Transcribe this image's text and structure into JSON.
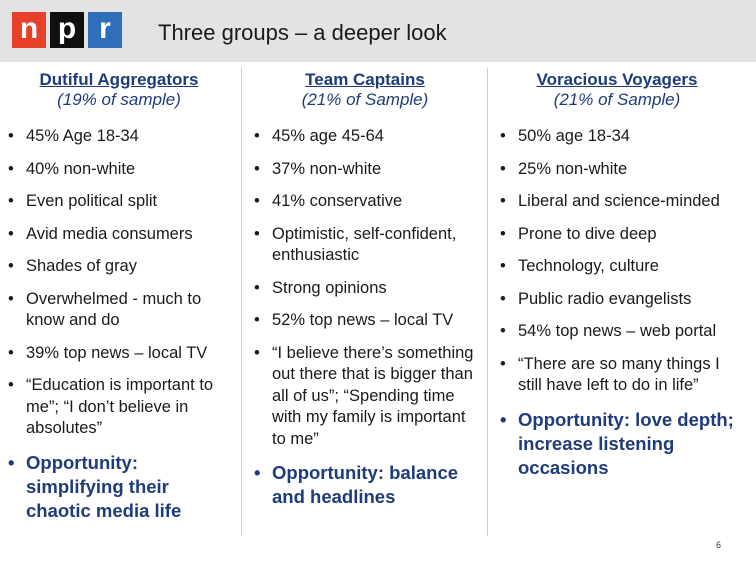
{
  "header": {
    "logo": [
      "n",
      "p",
      "r"
    ],
    "title": "Three groups – a deeper look"
  },
  "columns": [
    {
      "name": "Dutiful Aggregators",
      "sub": "(19% of sample)",
      "bullets": [
        "45% Age 18-34",
        "40% non-white",
        "Even political split",
        "Avid media consumers",
        "Shades of gray",
        "Overwhelmed - much to know and do",
        "39% top news – local TV",
        "“Education is important to me”; “I don’t believe in absolutes”"
      ],
      "highlight": "Opportunity: simplifying their chaotic media life"
    },
    {
      "name": "Team Captains",
      "sub": "(21% of Sample)",
      "bullets": [
        "45% age 45-64",
        "37% non-white",
        "41% conservative",
        "Optimistic, self-confident, enthusiastic",
        "Strong opinions",
        "52% top news – local TV",
        "“I believe there’s something out there that is bigger than all of us”; “Spending time with my family is important to me”"
      ],
      "highlight": "Opportunity: balance and headlines"
    },
    {
      "name": "Voracious Voyagers",
      "sub": "(21% of Sample)",
      "bullets": [
        "50% age 18-34",
        "25% non-white",
        "Liberal and science-minded",
        "Prone to dive deep",
        "Technology, culture",
        "Public radio evangelists",
        "54% top news – web portal",
        "“There are so many things I still have left to do in life”"
      ],
      "highlight": "Opportunity: love depth; increase listening occasions"
    }
  ],
  "page_number": "6"
}
